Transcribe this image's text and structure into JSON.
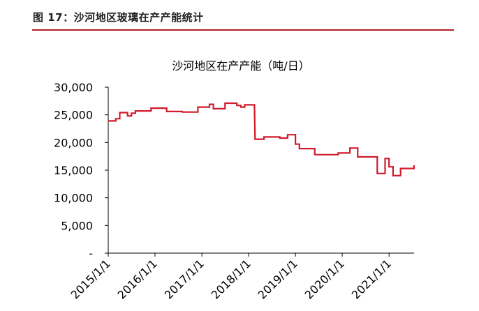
{
  "figure_header": "图 17：沙河地区玻璃在产产能统计",
  "colors": {
    "header_rule": "#b21f24",
    "line": "#d11a2a"
  },
  "chart_data": {
    "type": "line",
    "title": "沙河地区在产产能（吨/日）",
    "xlabel": "",
    "ylabel": "",
    "ylim": [
      0,
      30000
    ],
    "xlim": [
      "2015-01-01",
      "2021-07-15"
    ],
    "yticks": [
      {
        "value": 0,
        "label": "-"
      },
      {
        "value": 5000,
        "label": "5,000"
      },
      {
        "value": 10000,
        "label": "10,000"
      },
      {
        "value": 15000,
        "label": "15,000"
      },
      {
        "value": 20000,
        "label": "20,000"
      },
      {
        "value": 25000,
        "label": "25,000"
      },
      {
        "value": 30000,
        "label": "30,000"
      }
    ],
    "xticks": [
      {
        "date": "2015-01-01",
        "label": "2015/1/1"
      },
      {
        "date": "2016-01-01",
        "label": "2016/1/1"
      },
      {
        "date": "2017-01-01",
        "label": "2017/1/1"
      },
      {
        "date": "2018-01-01",
        "label": "2018/1/1"
      },
      {
        "date": "2019-01-01",
        "label": "2019/1/1"
      },
      {
        "date": "2020-01-01",
        "label": "2020/1/1"
      },
      {
        "date": "2021-01-01",
        "label": "2021/1/1"
      }
    ],
    "grid": false,
    "legend": "none",
    "series": [
      {
        "points": [
          [
            "2015-01-01",
            23900
          ],
          [
            "2015-03-01",
            23900
          ],
          [
            "2015-03-01",
            24300
          ],
          [
            "2015-04-01",
            24300
          ],
          [
            "2015-04-01",
            25400
          ],
          [
            "2015-06-01",
            25400
          ],
          [
            "2015-06-01",
            24800
          ],
          [
            "2015-07-01",
            24800
          ],
          [
            "2015-07-01",
            25300
          ],
          [
            "2015-08-01",
            25300
          ],
          [
            "2015-08-01",
            25700
          ],
          [
            "2015-12-01",
            25700
          ],
          [
            "2015-12-01",
            26200
          ],
          [
            "2016-04-01",
            26200
          ],
          [
            "2016-04-01",
            25600
          ],
          [
            "2016-08-01",
            25600
          ],
          [
            "2016-08-01",
            25500
          ],
          [
            "2016-12-01",
            25500
          ],
          [
            "2016-12-01",
            26400
          ],
          [
            "2017-03-01",
            26400
          ],
          [
            "2017-03-01",
            26900
          ],
          [
            "2017-04-01",
            26900
          ],
          [
            "2017-04-01",
            26100
          ],
          [
            "2017-07-01",
            26100
          ],
          [
            "2017-07-01",
            27100
          ],
          [
            "2017-10-01",
            27100
          ],
          [
            "2017-10-01",
            26700
          ],
          [
            "2017-11-01",
            26700
          ],
          [
            "2017-11-01",
            26400
          ],
          [
            "2017-12-01",
            26400
          ],
          [
            "2017-12-01",
            26800
          ],
          [
            "2018-02-15",
            26800
          ],
          [
            "2018-02-20",
            20600
          ],
          [
            "2018-05-01",
            20600
          ],
          [
            "2018-05-01",
            21000
          ],
          [
            "2018-09-01",
            21000
          ],
          [
            "2018-09-01",
            20800
          ],
          [
            "2018-11-01",
            20800
          ],
          [
            "2018-11-01",
            21400
          ],
          [
            "2019-01-01",
            21400
          ],
          [
            "2019-01-01",
            19700
          ],
          [
            "2019-02-01",
            19700
          ],
          [
            "2019-02-01",
            18900
          ],
          [
            "2019-06-01",
            18900
          ],
          [
            "2019-06-01",
            17800
          ],
          [
            "2019-12-01",
            17800
          ],
          [
            "2019-12-01",
            18100
          ],
          [
            "2020-03-01",
            18100
          ],
          [
            "2020-03-01",
            19000
          ],
          [
            "2020-05-01",
            19000
          ],
          [
            "2020-05-01",
            17400
          ],
          [
            "2020-10-01",
            17400
          ],
          [
            "2020-10-01",
            14400
          ],
          [
            "2020-12-01",
            14400
          ],
          [
            "2020-12-01",
            17100
          ],
          [
            "2021-01-01",
            17100
          ],
          [
            "2021-01-01",
            15600
          ],
          [
            "2021-02-01",
            15600
          ],
          [
            "2021-02-01",
            14000
          ],
          [
            "2021-04-01",
            14000
          ],
          [
            "2021-04-01",
            15300
          ],
          [
            "2021-09-01",
            15300
          ],
          [
            "2021-09-01",
            15900
          ],
          [
            "2022-01-01",
            15900
          ]
        ]
      }
    ]
  }
}
